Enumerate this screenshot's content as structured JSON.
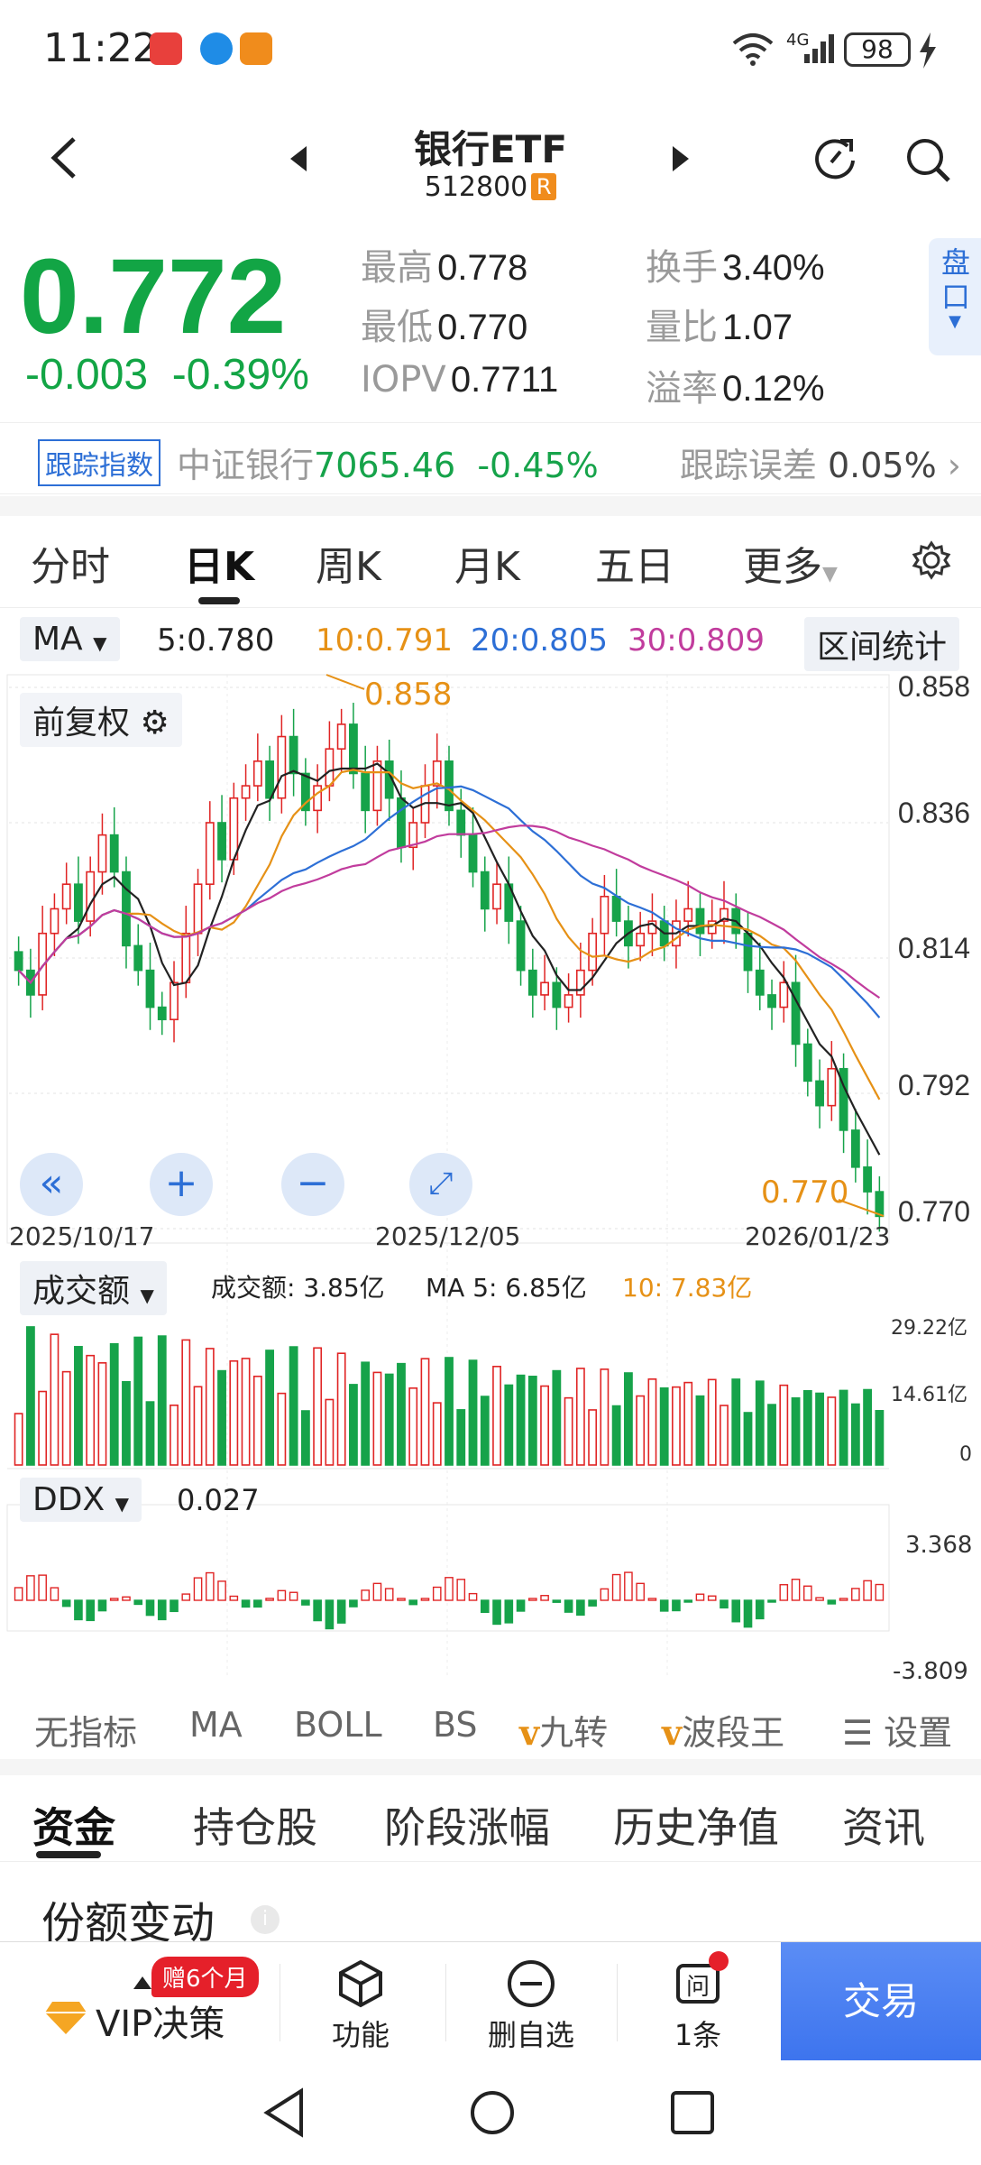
{
  "status_bar": {
    "time": "11:22",
    "battery": "98",
    "network": "4G"
  },
  "header": {
    "title": "银行ETF",
    "code": "512800",
    "code_badge": "R"
  },
  "quote": {
    "price": "0.772",
    "change": "-0.003",
    "change_pct": "-0.39%",
    "high_label": "最高",
    "high": "0.778",
    "low_label": "最低",
    "low": "0.770",
    "iopv_label": "IOPV",
    "iopv": "0.7711",
    "turnover_label": "换手",
    "turnover": "3.40%",
    "vol_ratio_label": "量比",
    "vol_ratio": "1.07",
    "premium_label": "溢率",
    "premium": "0.12%",
    "pankou": "盘口"
  },
  "tracking": {
    "badge": "跟踪指数",
    "index_name": "中证银行",
    "index_value": "7065.46",
    "index_change": "-0.45%",
    "error_label": "跟踪误差",
    "error_value": "0.05%"
  },
  "period_tabs": [
    "分时",
    "日K",
    "周K",
    "月K",
    "五日",
    "更多"
  ],
  "ma_legend": {
    "selector": "MA",
    "ma5": "5:0.780",
    "ma10": "10:0.791",
    "ma20": "20:0.805",
    "ma30": "30:0.809",
    "range_stats": "区间统计"
  },
  "chart_labels": {
    "adjust": "前复权",
    "date_start": "2025/10/17",
    "date_mid": "2025/12/05",
    "date_end": "2026/01/23",
    "high_mark": "0.858",
    "low_mark": "0.770"
  },
  "volume_legend": {
    "selector": "成交额",
    "value": "成交额: 3.85亿",
    "ma5": "MA 5: 6.85亿",
    "ma10": "10: 7.83亿",
    "top": "29.22亿",
    "mid": "14.61亿",
    "zero": "0"
  },
  "ddx_legend": {
    "selector": "DDX",
    "value": "0.027",
    "top": "3.368",
    "bottom": "-3.809"
  },
  "indicator_tabs": {
    "none": "无指标",
    "ma": "MA",
    "boll": "BOLL",
    "bs": "BS",
    "jiuzhuan": "九转",
    "boduan": "波段王",
    "settings": "设置"
  },
  "section_tabs": [
    "资金",
    "持仓股",
    "阶段涨幅",
    "历史净值",
    "资讯"
  ],
  "fund_section": {
    "title": "份额变动"
  },
  "action_bar": {
    "vip_badge": "赠6个月",
    "vip": "VIP决策",
    "feature": "功能",
    "remove": "删自选",
    "message": "1条",
    "trade": "交易"
  },
  "chart_data": {
    "type": "candlestick",
    "x_range": [
      "2025/10/17",
      "2026/01/23"
    ],
    "price_axis": [
      0.77,
      0.792,
      0.814,
      0.836,
      0.858
    ],
    "ylim": [
      0.77,
      0.858
    ],
    "marks": {
      "high": 0.858,
      "low": 0.77
    },
    "ma": {
      "MA5": 0.78,
      "MA10": 0.791,
      "MA20": 0.805,
      "MA30": 0.809
    },
    "closes": [
      0.812,
      0.808,
      0.818,
      0.822,
      0.826,
      0.82,
      0.828,
      0.834,
      0.828,
      0.816,
      0.812,
      0.806,
      0.804,
      0.81,
      0.818,
      0.826,
      0.836,
      0.83,
      0.84,
      0.842,
      0.846,
      0.84,
      0.85,
      0.844,
      0.838,
      0.842,
      0.848,
      0.852,
      0.844,
      0.838,
      0.846,
      0.84,
      0.832,
      0.836,
      0.842,
      0.846,
      0.838,
      0.834,
      0.828,
      0.822,
      0.826,
      0.82,
      0.812,
      0.808,
      0.81,
      0.806,
      0.808,
      0.812,
      0.818,
      0.824,
      0.82,
      0.816,
      0.818,
      0.82,
      0.816,
      0.82,
      0.822,
      0.818,
      0.82,
      0.822,
      0.818,
      0.812,
      0.808,
      0.806,
      0.81,
      0.8,
      0.794,
      0.79,
      0.796,
      0.786,
      0.78,
      0.776,
      0.772
    ],
    "volume_axis": {
      "top": "29.22亿",
      "mid": "14.61亿"
    },
    "ddx_range": [
      -3.809,
      3.368
    ]
  }
}
